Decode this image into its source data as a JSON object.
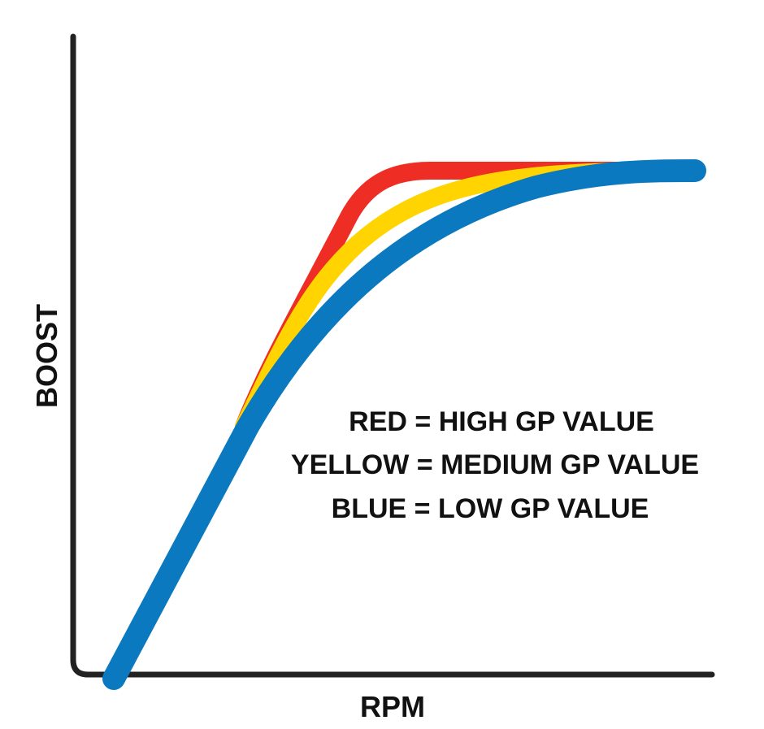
{
  "chart_data": {
    "type": "line",
    "title": "",
    "xlabel": "RPM",
    "ylabel": "BOOST",
    "grid": false,
    "legend_placement": "center-right",
    "legend": [
      {
        "text": "RED = HIGH GP VALUE"
      },
      {
        "text": "YELLOW = MEDIUM GP VALUE"
      },
      {
        "text": "BLUE = LOW GP VALUE"
      }
    ],
    "series": [
      {
        "color": "#ee2d24"
      },
      {
        "color": "#ffd400"
      },
      {
        "color": "#0b79bf"
      }
    ]
  }
}
